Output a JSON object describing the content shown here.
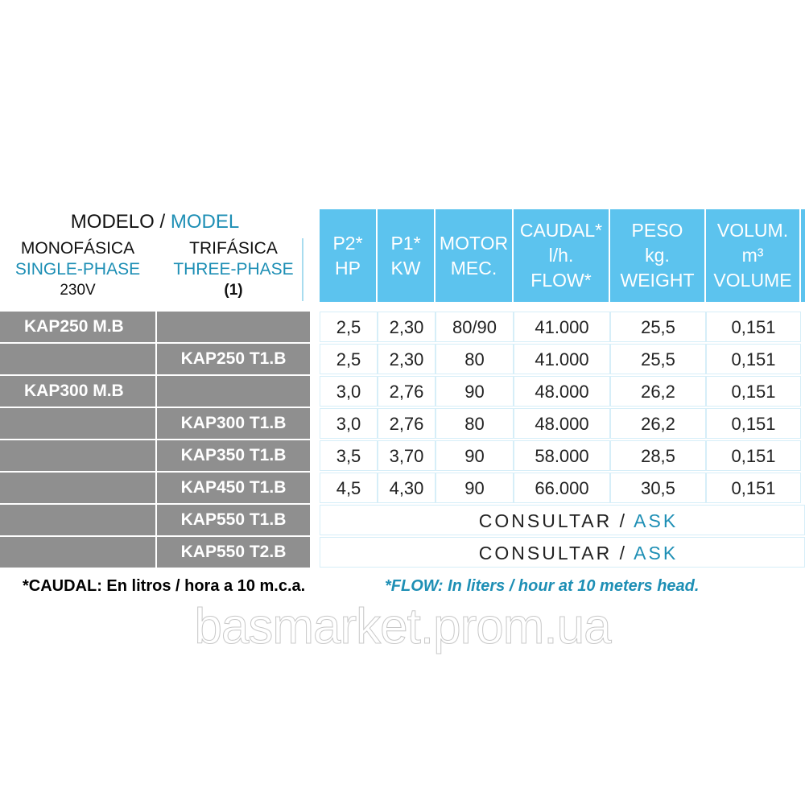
{
  "model_header": {
    "es": "MODELO",
    "sep": " / ",
    "en": "MODEL"
  },
  "single": {
    "es": "MONOFÁSICA",
    "en": "SINGLE-PHASE",
    "note": "230V"
  },
  "three": {
    "es": "TRIFÁSICA",
    "en": "THREE-PHASE",
    "note": "(1)"
  },
  "columns": [
    {
      "l1": "P2*",
      "l2": "HP",
      "l3": ""
    },
    {
      "l1": "P1*",
      "l2": "KW",
      "l3": ""
    },
    {
      "l1": "MOTOR",
      "l2": "MEC.",
      "l3": ""
    },
    {
      "l1": "CAUDAL*",
      "l2": "l/h.",
      "l3": "FLOW*"
    },
    {
      "l1": "PESO",
      "l2": "kg.",
      "l3": "WEIGHT"
    },
    {
      "l1": "VOLUM.",
      "l2": "m³",
      "l3": "VOLUME"
    }
  ],
  "rows": [
    {
      "single": "KAP250 M.B",
      "three": "",
      "values": [
        "2,5",
        "2,30",
        "80/90",
        "41.000",
        "25,5",
        "0,151"
      ]
    },
    {
      "single": "",
      "three": "KAP250 T1.B",
      "values": [
        "2,5",
        "2,30",
        "80",
        "41.000",
        "25,5",
        "0,151"
      ]
    },
    {
      "single": "KAP300 M.B",
      "three": "",
      "values": [
        "3,0",
        "2,76",
        "90",
        "48.000",
        "26,2",
        "0,151"
      ]
    },
    {
      "single": "",
      "three": "KAP300 T1.B",
      "values": [
        "3,0",
        "2,76",
        "80",
        "48.000",
        "26,2",
        "0,151"
      ]
    },
    {
      "single": "",
      "three": "KAP350 T1.B",
      "values": [
        "3,5",
        "3,70",
        "90",
        "58.000",
        "28,5",
        "0,151"
      ]
    },
    {
      "single": "",
      "three": "KAP450 T1.B",
      "values": [
        "4,5",
        "4,30",
        "90",
        "66.000",
        "30,5",
        "0,151"
      ]
    },
    {
      "single": "",
      "three": "KAP550 T1.B",
      "ask": {
        "es": "CONSULTAR",
        "sep": " / ",
        "en": "ASK"
      }
    },
    {
      "single": "",
      "three": "KAP550 T2.B",
      "ask": {
        "es": "CONSULTAR",
        "sep": " / ",
        "en": "ASK"
      }
    }
  ],
  "footnote": {
    "es": "*CAUDAL: En litros / hora a 10  m.c.a.",
    "en": "*FLOW: In liters / hour at 10 meters head."
  },
  "watermark": "basmarket.prom.ua",
  "colors": {
    "header_blue": "#5cc3ee",
    "accent_text": "#1e8fb5",
    "model_gray": "#8f8f8f"
  }
}
